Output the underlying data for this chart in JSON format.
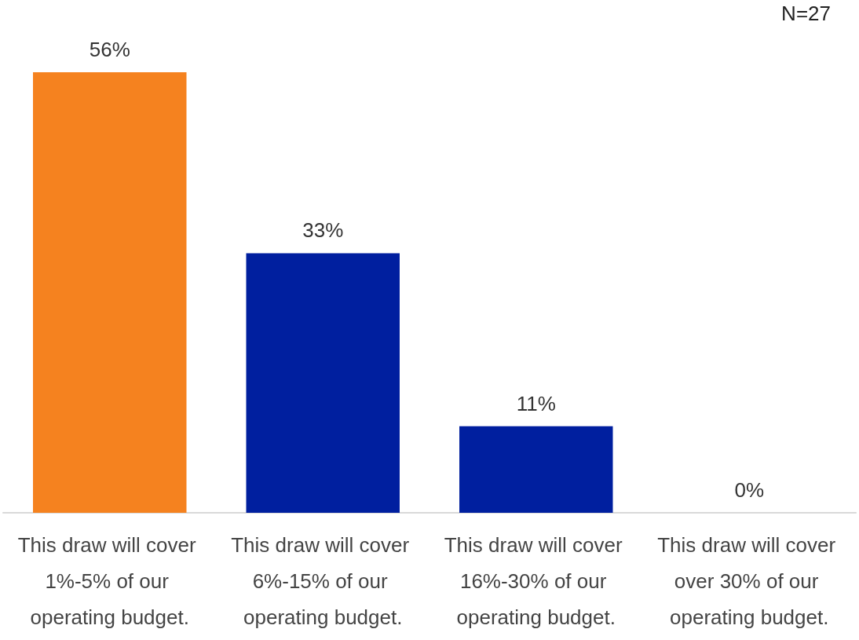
{
  "chart_data": {
    "type": "bar",
    "categories": [
      "This draw will cover 1%-5% of our operating budget.",
      "This draw will cover 6%-15% of our operating budget.",
      "This draw will cover 16%-30% of our operating budget.",
      "This draw will cover over 30% of our operating budget."
    ],
    "values": [
      56,
      33,
      11,
      0
    ],
    "colors": [
      "#f5821f",
      "#001f9f",
      "#001f9f",
      "#001f9f"
    ],
    "value_labels": [
      "56%",
      "33%",
      "11%",
      "0%"
    ],
    "annotations": [
      "N=27"
    ]
  }
}
